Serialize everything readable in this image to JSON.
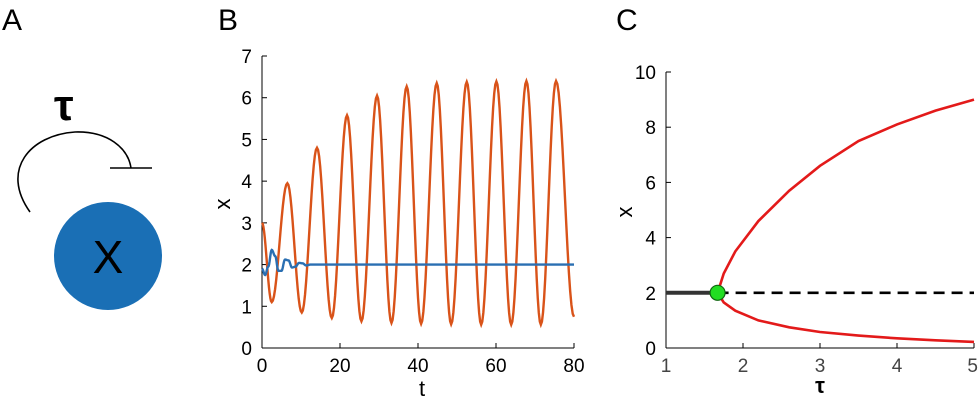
{
  "panels": {
    "a": {
      "letter": "A",
      "delay_symbol": "τ",
      "node_label": "X",
      "node_color": "#1a6fb5"
    },
    "b": {
      "letter": "B"
    },
    "c": {
      "letter": "C"
    }
  },
  "chart_data": [
    {
      "type": "line",
      "panel": "B",
      "xlabel": "t",
      "ylabel": "x",
      "xlim": [
        0,
        80
      ],
      "ylim": [
        0,
        7
      ],
      "xticks": [
        0,
        20,
        40,
        60,
        80
      ],
      "yticks": [
        0,
        1,
        2,
        3,
        4,
        5,
        6,
        7
      ],
      "grid": false,
      "series": [
        {
          "color": "#d95319",
          "peaks": [
            {
              "t": 6.5,
              "x": 3.95
            },
            {
              "t": 14.1,
              "x": 4.8
            },
            {
              "t": 21.8,
              "x": 5.58
            },
            {
              "t": 29.5,
              "x": 6.05
            },
            {
              "t": 37.1,
              "x": 6.27
            },
            {
              "t": 44.8,
              "x": 6.35
            },
            {
              "t": 52.5,
              "x": 6.38
            },
            {
              "t": 60.1,
              "x": 6.39
            },
            {
              "t": 67.8,
              "x": 6.4
            },
            {
              "t": 75.4,
              "x": 6.4
            }
          ],
          "troughs": [
            {
              "t": 2.5,
              "x": 1.1
            },
            {
              "t": 10.2,
              "x": 0.85
            },
            {
              "t": 17.9,
              "x": 0.72
            },
            {
              "t": 25.5,
              "x": 0.64
            },
            {
              "t": 33.2,
              "x": 0.6
            },
            {
              "t": 40.8,
              "x": 0.58
            },
            {
              "t": 48.5,
              "x": 0.57
            },
            {
              "t": 56.2,
              "x": 0.56
            },
            {
              "t": 63.9,
              "x": 0.56
            },
            {
              "t": 71.5,
              "x": 0.56
            }
          ],
          "start": {
            "t": 0,
            "x": 3.0
          },
          "end": {
            "t": 80,
            "x": 0.75
          }
        },
        {
          "color": "#2a6fb2",
          "points": [
            {
              "t": 0,
              "x": 1.9
            },
            {
              "t": 0.8,
              "x": 1.75
            },
            {
              "t": 1.6,
              "x": 1.95
            },
            {
              "t": 2.5,
              "x": 2.35
            },
            {
              "t": 3.4,
              "x": 2.2
            },
            {
              "t": 4.2,
              "x": 1.85
            },
            {
              "t": 5.0,
              "x": 1.85
            },
            {
              "t": 5.9,
              "x": 2.12
            },
            {
              "t": 6.8,
              "x": 2.1
            },
            {
              "t": 7.7,
              "x": 1.93
            },
            {
              "t": 8.6,
              "x": 1.95
            },
            {
              "t": 9.5,
              "x": 2.04
            },
            {
              "t": 10.4,
              "x": 2.03
            },
            {
              "t": 11.3,
              "x": 1.98
            },
            {
              "t": 12.5,
              "x": 2.0
            },
            {
              "t": 80,
              "x": 2.0
            }
          ]
        }
      ]
    },
    {
      "type": "line",
      "panel": "C",
      "xlabel": "τ",
      "ylabel": "x",
      "xlim": [
        1,
        5
      ],
      "ylim": [
        0,
        10
      ],
      "xticks": [
        1,
        2,
        3,
        4,
        5
      ],
      "yticks": [
        0,
        2,
        4,
        6,
        8,
        10
      ],
      "grid": false,
      "bifurcation_point": {
        "tau": 1.67,
        "x": 2,
        "color": "#22dd22"
      },
      "series": [
        {
          "style": "solid",
          "color": "#333333",
          "points": [
            {
              "tau": 1,
              "x": 2
            },
            {
              "tau": 1.67,
              "x": 2
            }
          ]
        },
        {
          "style": "dashed",
          "color": "#000000",
          "points": [
            {
              "tau": 1.67,
              "x": 2
            },
            {
              "tau": 5,
              "x": 2
            }
          ]
        },
        {
          "style": "solid",
          "color": "#e31a1a",
          "points": [
            {
              "tau": 1.67,
              "x": 2.0
            },
            {
              "tau": 1.75,
              "x": 2.7
            },
            {
              "tau": 1.9,
              "x": 3.5
            },
            {
              "tau": 2.2,
              "x": 4.6
            },
            {
              "tau": 2.6,
              "x": 5.7
            },
            {
              "tau": 3.0,
              "x": 6.6
            },
            {
              "tau": 3.5,
              "x": 7.5
            },
            {
              "tau": 4.0,
              "x": 8.1
            },
            {
              "tau": 4.5,
              "x": 8.6
            },
            {
              "tau": 5.0,
              "x": 9.0
            }
          ]
        },
        {
          "style": "solid",
          "color": "#e31a1a",
          "points": [
            {
              "tau": 1.67,
              "x": 2.0
            },
            {
              "tau": 1.75,
              "x": 1.65
            },
            {
              "tau": 1.9,
              "x": 1.35
            },
            {
              "tau": 2.2,
              "x": 1.0
            },
            {
              "tau": 2.6,
              "x": 0.75
            },
            {
              "tau": 3.0,
              "x": 0.58
            },
            {
              "tau": 3.5,
              "x": 0.45
            },
            {
              "tau": 4.0,
              "x": 0.35
            },
            {
              "tau": 4.5,
              "x": 0.28
            },
            {
              "tau": 5.0,
              "x": 0.22
            }
          ]
        }
      ]
    }
  ]
}
